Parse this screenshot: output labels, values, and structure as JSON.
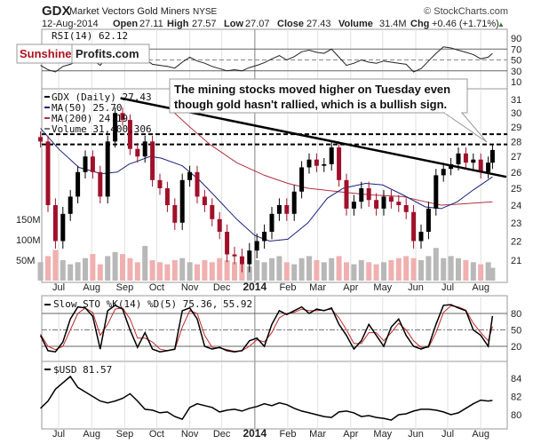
{
  "header": {
    "symbol": "GDX",
    "name": "Market Vectors Gold Miners",
    "exchange": "NYSE",
    "source": "© StockCharts.com",
    "date": "12-Aug-2014",
    "open_label": "Open",
    "open": "27.11",
    "high_label": "High",
    "high": "27.57",
    "low_label": "Low",
    "low": "27.07",
    "close_label": "Close",
    "close": "27.43",
    "volume_label": "Volume",
    "volume": "31.4M",
    "chg_label": "Chg",
    "chg": "+0.46 (+1.71%)",
    "chg_arrow": "▲"
  },
  "watermark": {
    "part1": "Sunshine",
    "part2": "Profits.com"
  },
  "annotation": {
    "line1": "The mining stocks moved higher on Tuesday even",
    "line2": "though gold hasn't rallied, which is a bullish sign."
  },
  "colors": {
    "up": "#000000",
    "down": "#a0102a",
    "ma50": "#1a237e",
    "ma200": "#b03040",
    "volume_up": "#b8b8b8",
    "volume_down": "#f0b0b0",
    "stoch_d": "#c0282a",
    "watermark_red": "#b01020"
  },
  "chart_data": [
    {
      "type": "line",
      "panel": "rsi",
      "legend": "RSI(14) 62.12",
      "ticks": [
        "90",
        "70",
        "50",
        "30",
        "10"
      ],
      "ylim": [
        0,
        100
      ]
    },
    {
      "type": "candlestick",
      "panel": "price",
      "legend": [
        "GDX (Daily) 27.43",
        "MA(50) 25.70",
        "MA(200) 24.19",
        "Volume 31,400,306"
      ],
      "price_ticks": [
        "31",
        "30",
        "29",
        "28",
        "27",
        "26",
        "25",
        "24",
        "23",
        "22",
        "21"
      ],
      "volume_ticks": [
        "150M",
        "100M",
        "50M"
      ],
      "ylim": [
        20.5,
        31.3
      ],
      "resistance_levels": [
        28.5,
        27.8
      ],
      "trendline": [
        [
          "2013-08-28",
          31.1
        ],
        [
          "2014-08-25",
          25.7
        ]
      ],
      "ma50": [
        [
          "2013-06-14",
          28.9
        ],
        [
          "2013-07-01",
          27.5
        ],
        [
          "2013-07-20",
          26.3
        ],
        [
          "2013-08-10",
          25.9
        ],
        [
          "2013-08-25",
          26.0
        ],
        [
          "2013-09-05",
          26.5
        ],
        [
          "2013-09-25",
          27.0
        ],
        [
          "2013-10-05",
          26.9
        ],
        [
          "2013-10-25",
          26.4
        ],
        [
          "2013-11-10",
          25.5
        ],
        [
          "2013-11-25",
          24.5
        ],
        [
          "2013-12-15",
          23.2
        ],
        [
          "2014-01-01",
          22.3
        ],
        [
          "2014-01-15",
          22.0
        ],
        [
          "2014-02-01",
          22.1
        ],
        [
          "2014-02-20",
          23.0
        ],
        [
          "2014-03-10",
          24.4
        ],
        [
          "2014-03-25",
          25.0
        ],
        [
          "2014-04-15",
          25.3
        ],
        [
          "2014-05-01",
          25.2
        ],
        [
          "2014-05-20",
          24.6
        ],
        [
          "2014-06-10",
          23.9
        ],
        [
          "2014-06-25",
          23.8
        ],
        [
          "2014-07-10",
          24.2
        ],
        [
          "2014-07-25",
          24.9
        ],
        [
          "2014-08-12",
          25.7
        ]
      ],
      "ma200": [
        [
          "2013-10-15",
          30.2
        ],
        [
          "2013-11-01",
          29.0
        ],
        [
          "2013-11-20",
          27.8
        ],
        [
          "2013-12-15",
          26.6
        ],
        [
          "2014-01-10",
          25.8
        ],
        [
          "2014-02-01",
          25.3
        ],
        [
          "2014-02-20",
          25.0
        ],
        [
          "2014-03-20",
          24.8
        ],
        [
          "2014-04-20",
          24.6
        ],
        [
          "2014-05-20",
          24.5
        ],
        [
          "2014-06-10",
          24.2
        ],
        [
          "2014-06-25",
          24.0
        ],
        [
          "2014-07-10",
          24.05
        ],
        [
          "2014-08-12",
          24.19
        ]
      ]
    },
    {
      "type": "line",
      "panel": "stochastic",
      "legend_k": "Slow STO %K(14) %D(5) 75.36,",
      "legend_d": "55.92",
      "ticks": [
        "80",
        "50",
        "20"
      ],
      "ylim": [
        0,
        100
      ]
    },
    {
      "type": "line",
      "panel": "usd",
      "legend": "$USD 81.57",
      "ticks": [
        "84",
        "82",
        "80"
      ],
      "ylim": [
        79,
        85
      ]
    }
  ],
  "series": {
    "dates": [
      "2013-06-14",
      "2013-06-21",
      "2013-06-28",
      "2013-07-05",
      "2013-07-12",
      "2013-07-19",
      "2013-07-26",
      "2013-08-02",
      "2013-08-09",
      "2013-08-16",
      "2013-08-23",
      "2013-08-30",
      "2013-09-06",
      "2013-09-13",
      "2013-09-20",
      "2013-09-27",
      "2013-10-04",
      "2013-10-11",
      "2013-10-18",
      "2013-10-25",
      "2013-11-01",
      "2013-11-08",
      "2013-11-15",
      "2013-11-22",
      "2013-11-29",
      "2013-12-06",
      "2013-12-13",
      "2013-12-20",
      "2013-12-27",
      "2014-01-03",
      "2014-01-10",
      "2014-01-17",
      "2014-01-24",
      "2014-01-31",
      "2014-02-07",
      "2014-02-14",
      "2014-02-21",
      "2014-02-28",
      "2014-03-07",
      "2014-03-14",
      "2014-03-21",
      "2014-03-28",
      "2014-04-04",
      "2014-04-11",
      "2014-04-18",
      "2014-04-25",
      "2014-05-02",
      "2014-05-09",
      "2014-05-16",
      "2014-05-23",
      "2014-05-30",
      "2014-06-06",
      "2014-06-13",
      "2014-06-20",
      "2014-06-27",
      "2014-07-04",
      "2014-07-11",
      "2014-07-18",
      "2014-07-25",
      "2014-08-01",
      "2014-08-08",
      "2014-08-12"
    ],
    "gdx_close": [
      28.0,
      24.0,
      22.0,
      23.5,
      24.5,
      26.0,
      27.0,
      26.0,
      24.5,
      28.0,
      30.0,
      29.5,
      27.5,
      27.0,
      28.0,
      25.5,
      25.0,
      24.0,
      23.0,
      25.5,
      26.0,
      24.5,
      24.0,
      23.2,
      22.5,
      21.3,
      21.2,
      20.8,
      21.5,
      22.0,
      22.5,
      23.5,
      24.0,
      23.5,
      24.8,
      26.3,
      26.8,
      26.4,
      26.5,
      27.6,
      25.5,
      23.8,
      24.2,
      25.0,
      24.3,
      23.8,
      24.5,
      24.2,
      24.0,
      23.6,
      22.0,
      22.5,
      23.8,
      25.8,
      26.2,
      26.5,
      27.2,
      26.6,
      26.8,
      26.0,
      26.6,
      27.43
    ],
    "volume_m": [
      45,
      60,
      75,
      50,
      40,
      45,
      55,
      65,
      40,
      60,
      70,
      65,
      55,
      45,
      85,
      50,
      45,
      40,
      50,
      55,
      45,
      40,
      50,
      45,
      55,
      50,
      45,
      40,
      35,
      50,
      45,
      55,
      60,
      45,
      40,
      55,
      60,
      50,
      45,
      55,
      60,
      45,
      40,
      50,
      45,
      40,
      45,
      50,
      55,
      60,
      55,
      50,
      60,
      80,
      55,
      60,
      55,
      50,
      45,
      40,
      45,
      31.4
    ],
    "rsi": [
      40,
      32,
      28,
      38,
      42,
      48,
      55,
      50,
      40,
      56,
      60,
      58,
      48,
      45,
      52,
      42,
      40,
      38,
      35,
      46,
      55,
      48,
      44,
      38,
      34,
      30,
      32,
      30,
      36,
      40,
      45,
      52,
      58,
      50,
      56,
      65,
      68,
      64,
      62,
      70,
      55,
      40,
      44,
      50,
      46,
      44,
      48,
      46,
      44,
      42,
      28,
      34,
      48,
      62,
      74,
      72,
      68,
      64,
      60,
      52,
      55,
      62.12
    ],
    "stoch_k": [
      40,
      12,
      10,
      28,
      70,
      92,
      90,
      75,
      15,
      85,
      95,
      88,
      50,
      18,
      45,
      15,
      10,
      12,
      15,
      85,
      90,
      70,
      20,
      15,
      18,
      12,
      10,
      12,
      30,
      35,
      20,
      60,
      85,
      78,
      85,
      92,
      80,
      88,
      85,
      90,
      60,
      40,
      15,
      30,
      60,
      40,
      20,
      55,
      70,
      40,
      20,
      15,
      20,
      60,
      95,
      96,
      90,
      85,
      50,
      40,
      20,
      75.36
    ],
    "stoch_d": [
      42,
      20,
      14,
      20,
      50,
      80,
      90,
      82,
      40,
      60,
      88,
      90,
      70,
      35,
      35,
      28,
      15,
      12,
      14,
      55,
      85,
      80,
      40,
      18,
      17,
      14,
      11,
      12,
      20,
      32,
      28,
      45,
      72,
      80,
      82,
      88,
      85,
      85,
      86,
      88,
      72,
      50,
      25,
      25,
      45,
      45,
      30,
      45,
      62,
      50,
      30,
      18,
      18,
      45,
      82,
      94,
      92,
      86,
      62,
      45,
      30,
      55.92
    ],
    "usd": [
      80.7,
      81.5,
      82.8,
      83.5,
      84.2,
      83.0,
      82.5,
      82.0,
      81.5,
      81.3,
      81.5,
      81.8,
      82.3,
      81.5,
      80.6,
      80.5,
      80.2,
      80.3,
      79.8,
      79.5,
      80.8,
      81.2,
      81.0,
      80.8,
      80.3,
      80.5,
      80.6,
      80.4,
      80.7,
      80.9,
      81.2,
      81.0,
      81.3,
      81.1,
      80.7,
      80.4,
      80.2,
      80.0,
      79.8,
      79.7,
      80.3,
      80.4,
      80.2,
      79.8,
      79.9,
      79.7,
      79.6,
      79.4,
      80.0,
      80.1,
      80.4,
      80.6,
      80.6,
      80.5,
      80.3,
      80.0,
      80.2,
      80.7,
      81.2,
      81.6,
      81.5,
      81.57
    ]
  },
  "months": [
    {
      "label": "Jul",
      "date": "2013-07-01"
    },
    {
      "label": "Aug",
      "date": "2013-08-01"
    },
    {
      "label": "Sep",
      "date": "2013-09-01"
    },
    {
      "label": "Oct",
      "date": "2013-10-01"
    },
    {
      "label": "Nov",
      "date": "2013-11-01"
    },
    {
      "label": "Dec",
      "date": "2013-12-01"
    },
    {
      "label": "2014",
      "date": "2014-01-01",
      "bold": true
    },
    {
      "label": "Feb",
      "date": "2014-02-01"
    },
    {
      "label": "Mar",
      "date": "2014-03-01"
    },
    {
      "label": "Apr",
      "date": "2014-04-01"
    },
    {
      "label": "May",
      "date": "2014-05-01"
    },
    {
      "label": "Jun",
      "date": "2014-06-01"
    },
    {
      "label": "Jul",
      "date": "2014-07-01"
    },
    {
      "label": "Aug",
      "date": "2014-08-01"
    }
  ]
}
